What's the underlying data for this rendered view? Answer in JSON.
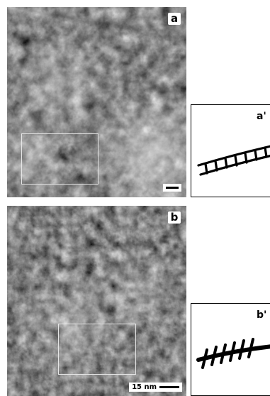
{
  "panels": [
    {
      "label": "a"
    },
    {
      "label": "b"
    }
  ],
  "schematics": [
    {
      "label": "a'"
    },
    {
      "label": "b'"
    }
  ],
  "scale_bar": {
    "text": "15 nm"
  },
  "colors": {
    "image_bg": "#111111",
    "roi_box": "#e6e6e6",
    "schematic_stroke": "#000000"
  }
}
